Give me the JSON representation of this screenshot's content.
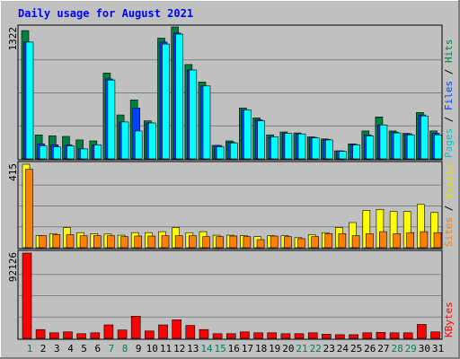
{
  "title": "Daily usage for August 2021",
  "colors": {
    "background": "#c0c0c0",
    "hits": "#008040",
    "files": "#0040ff",
    "pages": "#00ffff",
    "visits": "#ffff00",
    "sites": "#ff8000",
    "kbytes": "#ff0000",
    "title": "#0000ff",
    "weekend_label": "#00805c",
    "weekday_label": "#000000"
  },
  "legend": {
    "top": [
      "Pages",
      "Files",
      "Hits"
    ],
    "middle": [
      "Sites",
      "Visits"
    ],
    "bottom": [
      "KBytes"
    ]
  },
  "chart_data": [
    {
      "type": "bar",
      "panel": "top",
      "categories": [
        "1",
        "2",
        "3",
        "4",
        "5",
        "6",
        "7",
        "8",
        "9",
        "10",
        "11",
        "12",
        "13",
        "14",
        "15",
        "16",
        "17",
        "18",
        "19",
        "20",
        "21",
        "22",
        "23",
        "24",
        "25",
        "26",
        "27",
        "28",
        "29",
        "30",
        "31"
      ],
      "weekend_days": [
        "1",
        "7",
        "8",
        "14",
        "15",
        "21",
        "22",
        "28",
        "29"
      ],
      "ymax_label": "1322",
      "ylim": [
        0,
        1322
      ],
      "grid": true,
      "series": [
        {
          "name": "Hits",
          "values": [
            1285,
            240,
            230,
            225,
            190,
            180,
            860,
            440,
            590,
            380,
            1210,
            1322,
            945,
            770,
            135,
            180,
            510,
            410,
            240,
            270,
            260,
            220,
            200,
            80,
            150,
            280,
            420,
            280,
            255,
            465,
            280
          ]
        },
        {
          "name": "Files",
          "values": [
            1170,
            150,
            140,
            140,
            100,
            140,
            800,
            370,
            510,
            360,
            1170,
            1260,
            890,
            730,
            135,
            165,
            490,
            390,
            220,
            255,
            250,
            215,
            195,
            80,
            145,
            240,
            340,
            265,
            250,
            440,
            255
          ]
        },
        {
          "name": "Pages",
          "values": [
            1170,
            130,
            120,
            130,
            100,
            140,
            790,
            370,
            280,
            360,
            1150,
            1250,
            890,
            730,
            120,
            160,
            490,
            380,
            220,
            255,
            250,
            210,
            190,
            75,
            140,
            230,
            340,
            260,
            240,
            430,
            240
          ]
        }
      ]
    },
    {
      "type": "bar",
      "panel": "middle",
      "categories": [
        "1",
        "2",
        "3",
        "4",
        "5",
        "6",
        "7",
        "8",
        "9",
        "10",
        "11",
        "12",
        "13",
        "14",
        "15",
        "16",
        "17",
        "18",
        "19",
        "20",
        "21",
        "22",
        "23",
        "24",
        "25",
        "26",
        "27",
        "28",
        "29",
        "30",
        "31"
      ],
      "ymax_label": "415",
      "ylim": [
        0,
        415
      ],
      "grid": true,
      "series": [
        {
          "name": "Visits",
          "values": [
            415,
            60,
            70,
            100,
            75,
            70,
            68,
            62,
            75,
            75,
            80,
            100,
            75,
            80,
            62,
            62,
            60,
            55,
            60,
            60,
            50,
            65,
            75,
            100,
            125,
            185,
            190,
            180,
            180,
            215,
            175
          ]
        },
        {
          "name": "Sites",
          "values": [
            390,
            60,
            65,
            65,
            60,
            60,
            60,
            55,
            58,
            58,
            60,
            60,
            60,
            55,
            55,
            58,
            55,
            40,
            58,
            55,
            45,
            55,
            70,
            70,
            60,
            70,
            80,
            70,
            75,
            80,
            75
          ]
        }
      ]
    },
    {
      "type": "bar",
      "panel": "bottom",
      "categories": [
        "1",
        "2",
        "3",
        "4",
        "5",
        "6",
        "7",
        "8",
        "9",
        "10",
        "11",
        "12",
        "13",
        "14",
        "15",
        "16",
        "17",
        "18",
        "19",
        "20",
        "21",
        "22",
        "23",
        "24",
        "25",
        "26",
        "27",
        "28",
        "29",
        "30",
        "31"
      ],
      "ymax_label": "92126",
      "ylim": [
        0,
        92126
      ],
      "grid": true,
      "series": [
        {
          "name": "KBytes",
          "values": [
            92126,
            9500,
            6000,
            7000,
            5000,
            6000,
            14500,
            9000,
            24000,
            8000,
            14500,
            20000,
            14000,
            9500,
            5000,
            5000,
            7000,
            6000,
            6000,
            5000,
            5000,
            6000,
            4500,
            4000,
            4000,
            6000,
            6500,
            6000,
            6000,
            15000,
            7000
          ]
        }
      ]
    }
  ]
}
